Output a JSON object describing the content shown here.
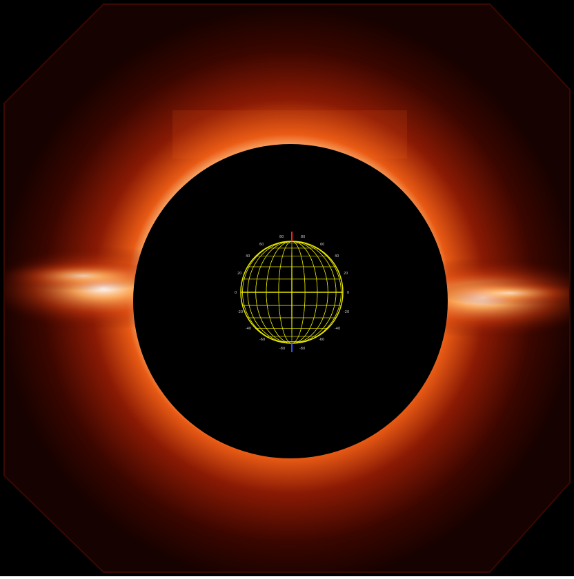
{
  "colors": {
    "background": "#000000",
    "corona_inner": "#ffffff",
    "corona_mid": "#ff8a2a",
    "corona_outer": "#5a0a00",
    "grid": "#e6e600",
    "north_axis": "#ff2020",
    "south_axis": "#3050ff",
    "label": "#cccccc"
  },
  "grid_labels": {
    "lat_top": "80",
    "lat_60": "60",
    "lat_40": "40",
    "lat_20": "20",
    "equator": "0",
    "lat_m20": "-20",
    "lat_m40": "-40",
    "lat_m60": "-60",
    "lat_bottom": "-80"
  }
}
